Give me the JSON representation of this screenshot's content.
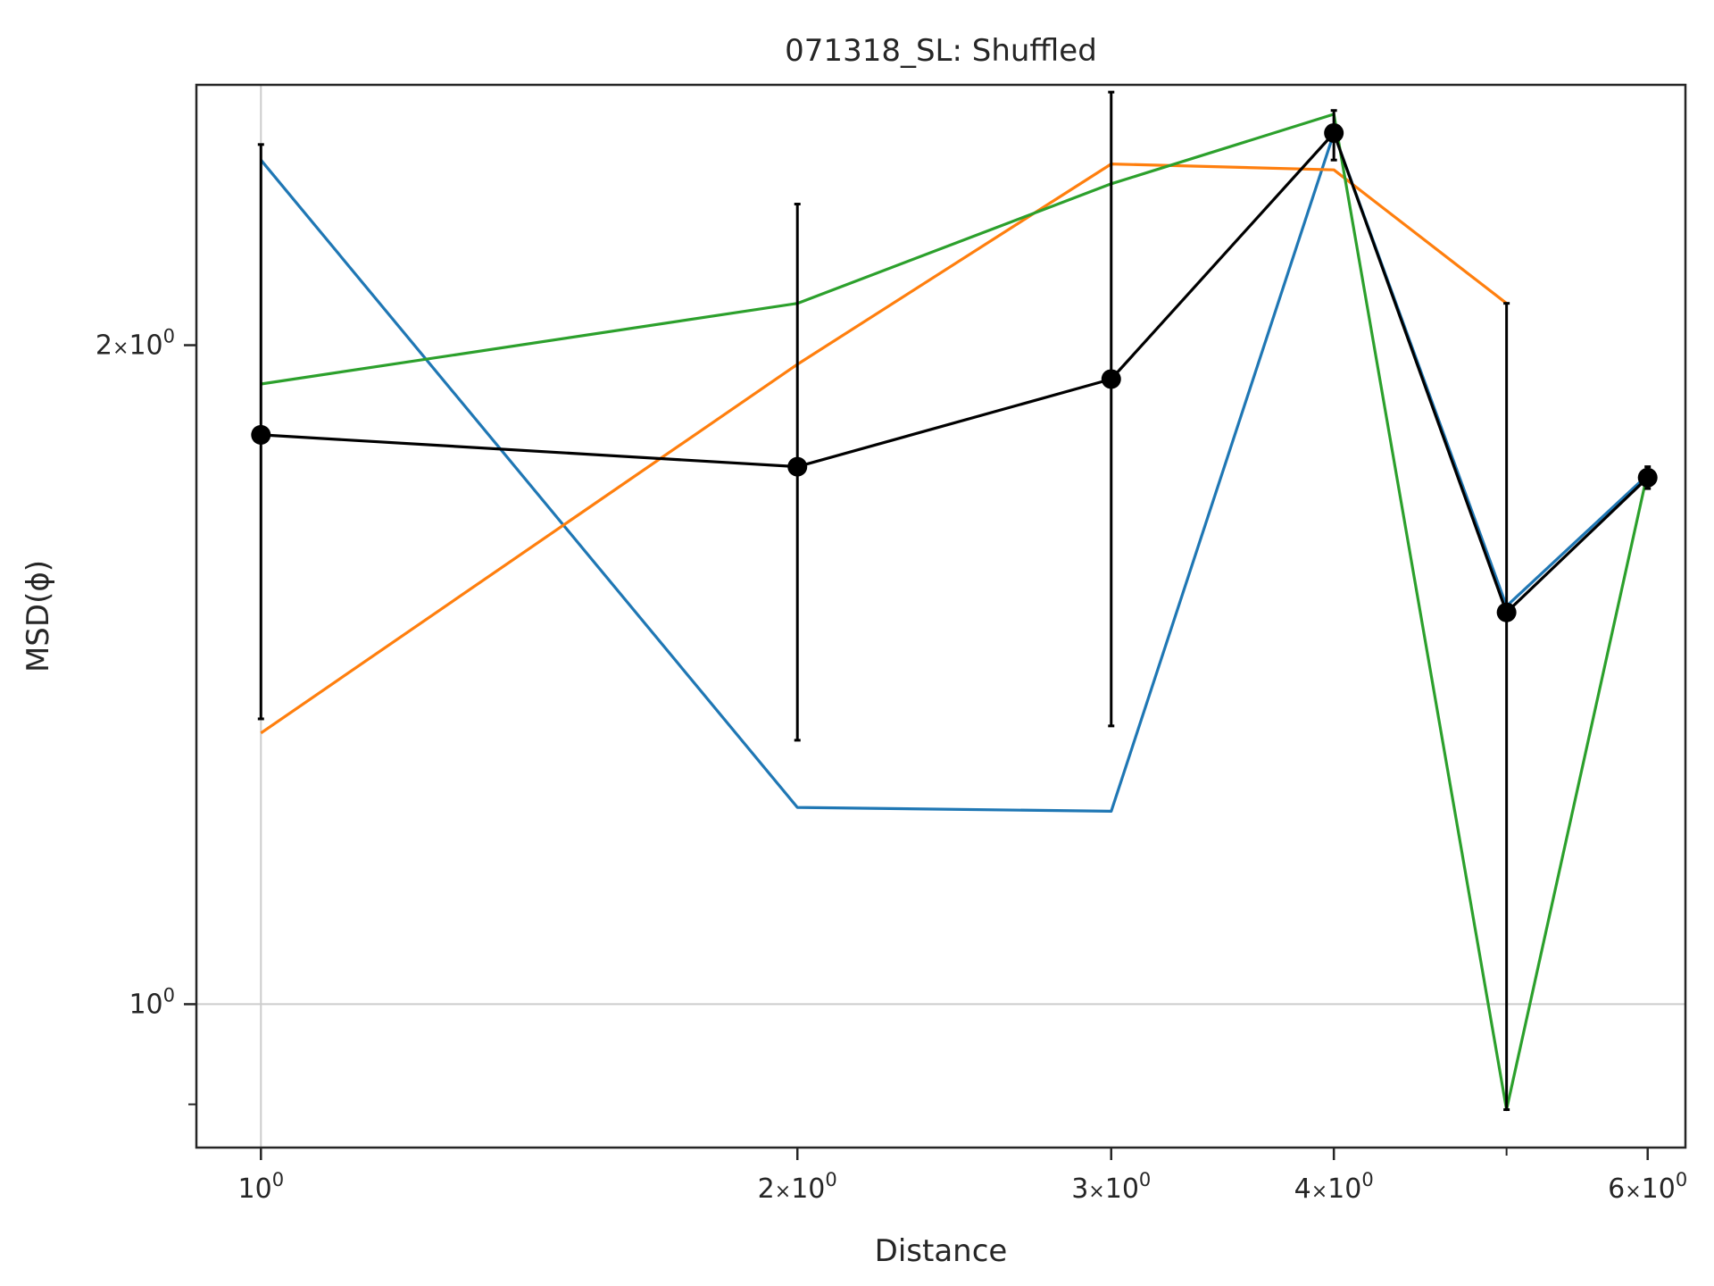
{
  "chart_data": {
    "type": "line",
    "title": "071318_SL: Shuffled",
    "xlabel": "Distance",
    "ylabel": "MSD(ϕ)",
    "xscale": "log",
    "yscale": "log",
    "xlim": [
      0.92,
      6.3
    ],
    "ylim": [
      0.86,
      2.63
    ],
    "grid": "major gridlines at 10^0 on both axes",
    "x_ticks": [
      {
        "value": 1,
        "label": "10",
        "exp": "0",
        "type": "power"
      },
      {
        "value": 2,
        "label": "2×10",
        "exp": "0",
        "type": "mult"
      },
      {
        "value": 3,
        "label": "3×10",
        "exp": "0",
        "type": "mult"
      },
      {
        "value": 4,
        "label": "4×10",
        "exp": "0",
        "type": "mult"
      },
      {
        "value": 6,
        "label": "6×10",
        "exp": "0",
        "type": "mult"
      }
    ],
    "x_minor_ticks": [
      5
    ],
    "y_ticks": [
      {
        "value": 1,
        "label": "10",
        "exp": "0",
        "type": "power"
      },
      {
        "value": 2,
        "label": "2×10",
        "exp": "0",
        "type": "mult"
      }
    ],
    "y_minor_ticks": [
      0.9
    ],
    "x": [
      1,
      2,
      3,
      4,
      5,
      6
    ],
    "series": [
      {
        "color": "#1f77b4",
        "values": [
          2.43,
          1.23,
          1.225,
          2.5,
          1.52,
          1.745
        ]
      },
      {
        "color": "#ff7f0e",
        "values": [
          1.33,
          1.96,
          2.42,
          2.405,
          2.09,
          null
        ]
      },
      {
        "color": "#2ca02c",
        "values": [
          1.92,
          2.09,
          2.37,
          2.55,
          0.895,
          1.75
        ]
      }
    ],
    "mean": {
      "color": "#000000",
      "values": [
        1.82,
        1.76,
        1.93,
        2.5,
        1.51,
        1.74
      ],
      "err_low": [
        1.35,
        1.32,
        1.34,
        2.43,
        0.895,
        1.72
      ],
      "err_high": [
        2.47,
        2.32,
        2.61,
        2.56,
        2.09,
        1.76
      ]
    }
  }
}
